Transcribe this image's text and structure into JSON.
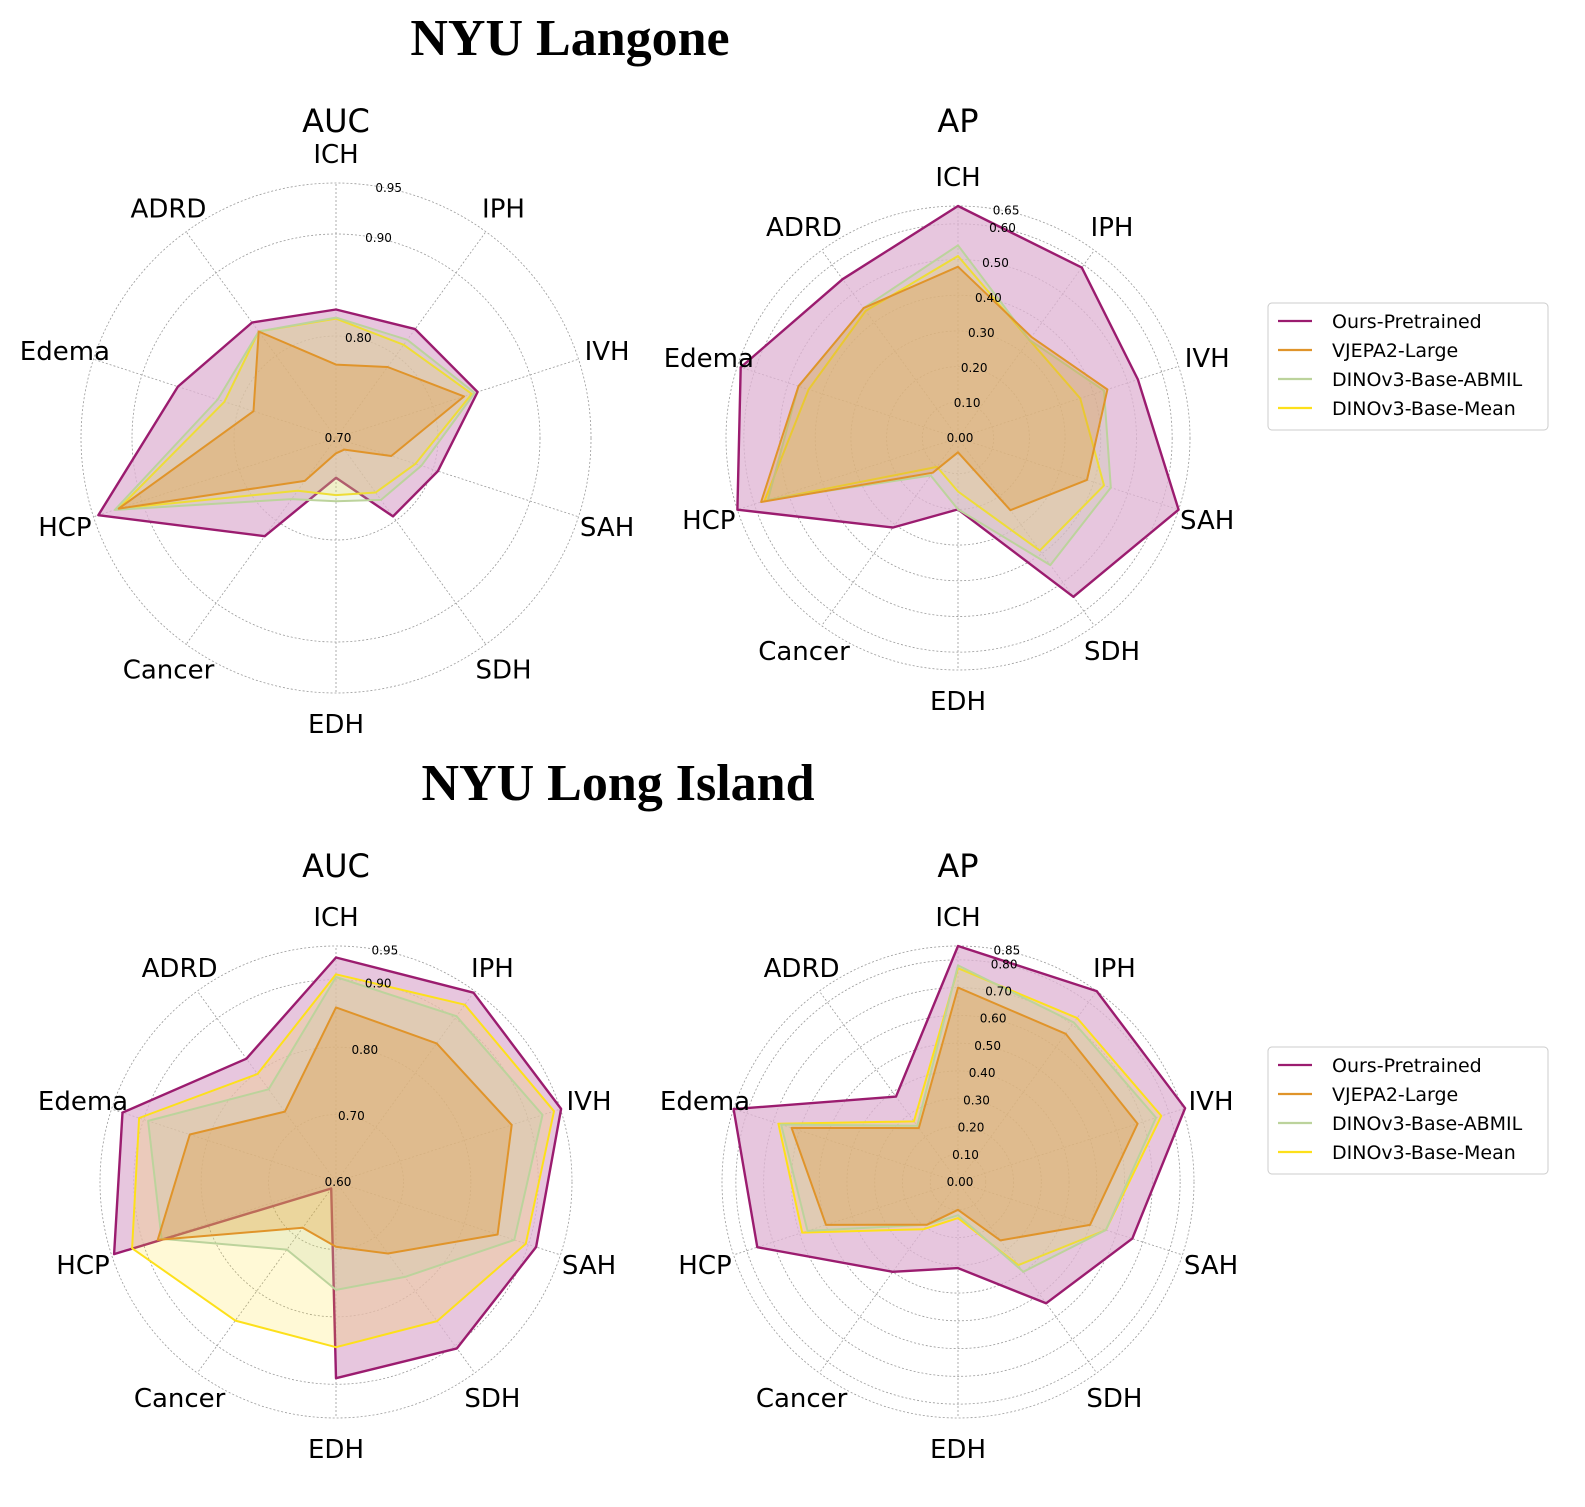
{
  "colors": {
    "Ours-Pretrained": "#9b1c6f",
    "VJEPA2-Large": "#e0942a",
    "DINOv3-Base-ABMIL": "#bcd39c",
    "DINOv3-Base-Mean": "#fde01a",
    "ours_fill": "#dfb3d3"
  },
  "sections": [
    {
      "title": "NYU Langone"
    },
    {
      "title": "NYU Long Island"
    }
  ],
  "legend": [
    "Ours-Pretrained",
    "VJEPA2-Large",
    "DINOv3-Base-ABMIL",
    "DINOv3-Base-Mean"
  ],
  "chart_data": [
    {
      "type": "radar",
      "section": "NYU Langone",
      "title": "AUC",
      "categories": [
        "ICH",
        "IPH",
        "IVH",
        "SAH",
        "SDH",
        "EDH",
        "Cancer",
        "HCP",
        "Edema",
        "ADRD"
      ],
      "rlim": [
        0.7,
        0.95
      ],
      "rticks": [
        0.7,
        0.8,
        0.9,
        0.95
      ],
      "rtick_labels": [
        "0.70",
        "0.80",
        "0.90",
        "0.95"
      ],
      "series": [
        {
          "name": "Ours-Pretrained",
          "values": [
            0.826,
            0.832,
            0.846,
            0.805,
            0.795,
            0.739,
            0.819,
            0.945,
            0.863,
            0.84
          ]
        },
        {
          "name": "VJEPA2-Large",
          "values": [
            0.772,
            0.786,
            0.832,
            0.757,
            0.714,
            0.715,
            0.752,
            0.924,
            0.785,
            0.829
          ]
        },
        {
          "name": "DINOv3-Base-ABMIL",
          "values": [
            0.818,
            0.819,
            0.843,
            0.788,
            0.775,
            0.762,
            0.774,
            0.928,
            0.822,
            0.829
          ]
        },
        {
          "name": "DINOv3-Base-Mean",
          "values": [
            0.817,
            0.813,
            0.84,
            0.782,
            0.766,
            0.756,
            0.764,
            0.924,
            0.815,
            0.829
          ]
        }
      ]
    },
    {
      "type": "radar",
      "section": "NYU Langone",
      "title": "AP",
      "categories": [
        "ICH",
        "IPH",
        "IVH",
        "SAH",
        "SDH",
        "EDH",
        "Cancer",
        "HCP",
        "Edema",
        "ADRD"
      ],
      "rlim": [
        0.0,
        0.65
      ],
      "rticks": [
        0.0,
        0.1,
        0.2,
        0.3,
        0.4,
        0.5,
        0.6,
        0.65
      ],
      "rtick_labels": [
        "0.00",
        "0.10",
        "0.20",
        "0.30",
        "0.40",
        "0.50",
        "0.60",
        "0.65"
      ],
      "series": [
        {
          "name": "Ours-Pretrained",
          "values": [
            0.65,
            0.59,
            0.53,
            0.65,
            0.55,
            0.2,
            0.31,
            0.65,
            0.64,
            0.55
          ]
        },
        {
          "name": "VJEPA2-Large",
          "values": [
            0.48,
            0.35,
            0.44,
            0.38,
            0.25,
            0.04,
            0.12,
            0.58,
            0.47,
            0.45
          ]
        },
        {
          "name": "DINOv3-Base-ABMIL",
          "values": [
            0.54,
            0.34,
            0.43,
            0.45,
            0.44,
            0.2,
            0.13,
            0.56,
            0.47,
            0.45
          ]
        },
        {
          "name": "DINOv3-Base-Mean",
          "values": [
            0.51,
            0.34,
            0.36,
            0.43,
            0.39,
            0.15,
            0.1,
            0.57,
            0.44,
            0.44
          ]
        }
      ]
    },
    {
      "type": "radar",
      "section": "NYU Long Island",
      "title": "AUC",
      "categories": [
        "ICH",
        "IPH",
        "IVH",
        "SAH",
        "SDH",
        "EDH",
        "Cancer",
        "HCP",
        "Edema",
        "ADRD"
      ],
      "rlim": [
        0.6,
        0.95
      ],
      "rticks": [
        0.6,
        0.7,
        0.8,
        0.9,
        0.95
      ],
      "rtick_labels": [
        "0.60",
        "0.70",
        "0.80",
        "0.90",
        "0.95"
      ],
      "series": [
        {
          "name": "Ours-Pretrained",
          "values": [
            0.933,
            0.947,
            0.951,
            0.912,
            0.905,
            0.891,
            0.612,
            0.946,
            0.933,
            0.826
          ]
        },
        {
          "name": "VJEPA2-Large",
          "values": [
            0.859,
            0.854,
            0.874,
            0.852,
            0.731,
            0.696,
            0.684,
            0.878,
            0.828,
            0.729
          ]
        },
        {
          "name": "DINOv3-Base-ABMIL",
          "values": [
            0.904,
            0.904,
            0.922,
            0.878,
            0.774,
            0.76,
            0.724,
            0.872,
            0.893,
            0.77
          ]
        },
        {
          "name": "DINOv3-Base-Mean",
          "values": [
            0.908,
            0.925,
            0.94,
            0.896,
            0.855,
            0.845,
            0.854,
            0.918,
            0.907,
            0.798
          ]
        }
      ]
    },
    {
      "type": "radar",
      "section": "NYU Long Island",
      "title": "AP",
      "categories": [
        "ICH",
        "IPH",
        "IVH",
        "SAH",
        "SDH",
        "EDH",
        "Cancer",
        "HCP",
        "Edema",
        "ADRD"
      ],
      "rlim": [
        0.0,
        0.85
      ],
      "rticks": [
        0.0,
        0.1,
        0.2,
        0.3,
        0.4,
        0.5,
        0.6,
        0.7,
        0.8,
        0.85
      ],
      "rtick_labels": [
        "0.00",
        "0.10",
        "0.20",
        "0.30",
        "0.40",
        "0.50",
        "0.60",
        "0.70",
        "0.80",
        "0.85"
      ],
      "series": [
        {
          "name": "Ours-Pretrained",
          "values": [
            0.85,
            0.85,
            0.86,
            0.66,
            0.54,
            0.31,
            0.4,
            0.76,
            0.85,
            0.38
          ]
        },
        {
          "name": "VJEPA2-Large",
          "values": [
            0.7,
            0.66,
            0.68,
            0.5,
            0.26,
            0.1,
            0.19,
            0.5,
            0.63,
            0.24
          ]
        },
        {
          "name": "DINOv3-Base-ABMIL",
          "values": [
            0.78,
            0.71,
            0.75,
            0.56,
            0.4,
            0.12,
            0.19,
            0.57,
            0.67,
            0.25
          ]
        },
        {
          "name": "DINOv3-Base-Mean",
          "values": [
            0.77,
            0.73,
            0.77,
            0.56,
            0.37,
            0.13,
            0.21,
            0.59,
            0.68,
            0.27
          ]
        }
      ]
    }
  ]
}
